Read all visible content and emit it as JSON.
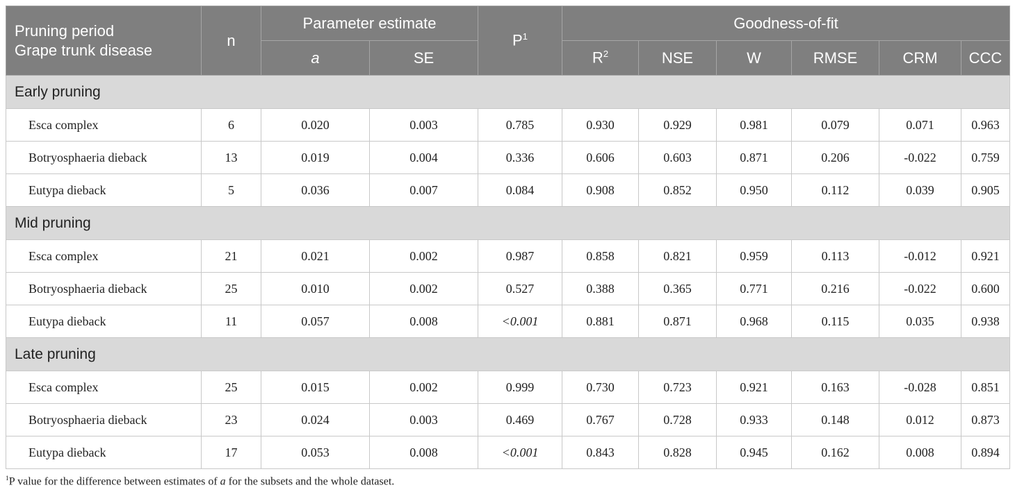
{
  "table": {
    "header": {
      "first": [
        "Pruning period",
        "Grape trunk disease"
      ],
      "n": "n",
      "param_group": "Parameter estimate",
      "param_cols": [
        "a",
        "SE"
      ],
      "p": {
        "text": "P",
        "sup": "1"
      },
      "gof_group": "Goodness-of-fit",
      "r2": {
        "text": "R",
        "sup": "2"
      },
      "gof_cols": [
        "NSE",
        "W",
        "RMSE",
        "CRM",
        "CCC"
      ]
    },
    "groups": [
      {
        "label": "Early pruning",
        "rows": [
          [
            "Esca complex",
            "6",
            "0.020",
            "0.003",
            "0.785",
            "0.930",
            "0.929",
            "0.981",
            "0.079",
            "0.071",
            "0.963"
          ],
          [
            "Botryosphaeria dieback",
            "13",
            "0.019",
            "0.004",
            "0.336",
            "0.606",
            "0.603",
            "0.871",
            "0.206",
            "-0.022",
            "0.759"
          ],
          [
            "Eutypa dieback",
            "5",
            "0.036",
            "0.007",
            "0.084",
            "0.908",
            "0.852",
            "0.950",
            "0.112",
            "0.039",
            "0.905"
          ]
        ]
      },
      {
        "label": "Mid pruning",
        "rows": [
          [
            "Esca complex",
            "21",
            "0.021",
            "0.002",
            "0.987",
            "0.858",
            "0.821",
            "0.959",
            "0.113",
            "-0.012",
            "0.921"
          ],
          [
            "Botryosphaeria dieback",
            "25",
            "0.010",
            "0.002",
            "0.527",
            "0.388",
            "0.365",
            "0.771",
            "0.216",
            "-0.022",
            "0.600"
          ],
          [
            "Eutypa dieback",
            "11",
            "0.057",
            "0.008",
            "<0.001",
            "0.881",
            "0.871",
            "0.968",
            "0.115",
            "0.035",
            "0.938"
          ]
        ]
      },
      {
        "label": "Late pruning",
        "rows": [
          [
            "Esca complex",
            "25",
            "0.015",
            "0.002",
            "0.999",
            "0.730",
            "0.723",
            "0.921",
            "0.163",
            "-0.028",
            "0.851"
          ],
          [
            "Botryosphaeria dieback",
            "23",
            "0.024",
            "0.003",
            "0.469",
            "0.767",
            "0.728",
            "0.933",
            "0.148",
            "0.012",
            "0.873"
          ],
          [
            "Eutypa dieback",
            "17",
            "0.053",
            "0.008",
            "<0.001",
            "0.843",
            "0.828",
            "0.945",
            "0.162",
            "0.008",
            "0.894"
          ]
        ]
      }
    ],
    "footnote": {
      "sup": "1",
      "before": "P value for the difference between estimates of ",
      "italic": "a",
      "after": " for the subsets and the whole dataset."
    }
  }
}
